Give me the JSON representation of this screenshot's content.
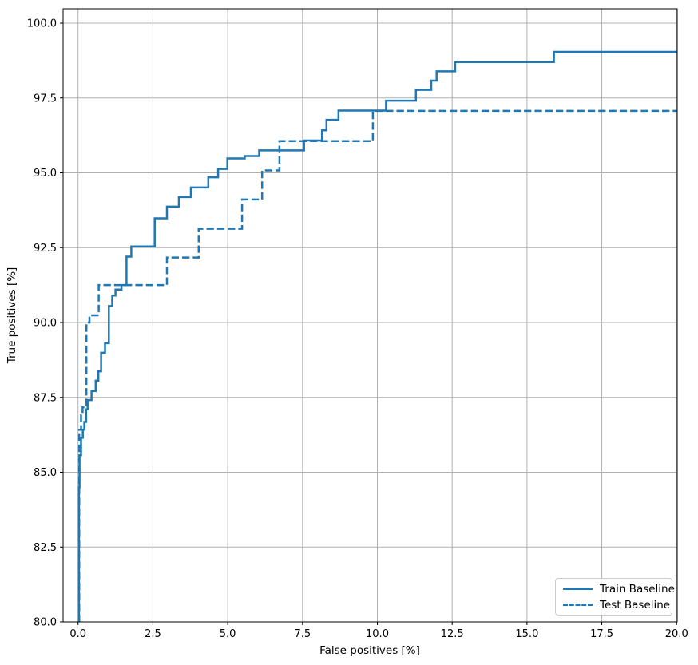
{
  "chart_data": {
    "type": "line",
    "title": "",
    "xlabel": "False positives [%]",
    "ylabel": "True positives [%]",
    "xlim": [
      -0.5,
      20.02
    ],
    "ylim": [
      80,
      100.48
    ],
    "xticks": [
      0.0,
      2.5,
      5.0,
      7.5,
      10.0,
      12.5,
      15.0,
      17.5,
      20.0
    ],
    "yticks": [
      80.0,
      82.5,
      85.0,
      87.5,
      90.0,
      92.5,
      95.0,
      97.5,
      100.0
    ],
    "tick_decimals": 1,
    "grid": true,
    "grid_color": "#b0b0b0",
    "axis_color": "#000000",
    "line_color": "#1f77b4",
    "line_width": 2.5,
    "legend_position": "lower right",
    "series": [
      {
        "name": "Train Baseline",
        "line_style": "solid",
        "color": "#1f77b4",
        "points": [
          [
            0.03,
            80.0
          ],
          [
            0.03,
            84.5
          ],
          [
            0.05,
            84.5
          ],
          [
            0.05,
            85.57
          ],
          [
            0.1,
            85.57
          ],
          [
            0.1,
            86.15
          ],
          [
            0.16,
            86.15
          ],
          [
            0.16,
            86.42
          ],
          [
            0.21,
            86.42
          ],
          [
            0.21,
            86.68
          ],
          [
            0.27,
            86.68
          ],
          [
            0.27,
            87.1
          ],
          [
            0.32,
            87.1
          ],
          [
            0.32,
            87.41
          ],
          [
            0.45,
            87.41
          ],
          [
            0.45,
            87.71
          ],
          [
            0.59,
            87.71
          ],
          [
            0.59,
            88.06
          ],
          [
            0.68,
            88.06
          ],
          [
            0.68,
            88.37
          ],
          [
            0.77,
            88.37
          ],
          [
            0.77,
            88.99
          ],
          [
            0.9,
            88.99
          ],
          [
            0.9,
            89.31
          ],
          [
            1.03,
            89.31
          ],
          [
            1.03,
            90.55
          ],
          [
            1.14,
            90.55
          ],
          [
            1.14,
            90.9
          ],
          [
            1.25,
            90.9
          ],
          [
            1.25,
            91.1
          ],
          [
            1.45,
            91.1
          ],
          [
            1.45,
            91.25
          ],
          [
            1.62,
            91.25
          ],
          [
            1.62,
            92.2
          ],
          [
            1.78,
            92.2
          ],
          [
            1.78,
            92.54
          ],
          [
            2.56,
            92.54
          ],
          [
            2.56,
            93.48
          ],
          [
            2.97,
            93.48
          ],
          [
            2.97,
            93.87
          ],
          [
            3.37,
            93.87
          ],
          [
            3.37,
            94.19
          ],
          [
            3.77,
            94.19
          ],
          [
            3.77,
            94.51
          ],
          [
            4.35,
            94.51
          ],
          [
            4.35,
            94.85
          ],
          [
            4.68,
            94.85
          ],
          [
            4.68,
            95.13
          ],
          [
            4.99,
            95.13
          ],
          [
            4.99,
            95.48
          ],
          [
            5.57,
            95.48
          ],
          [
            5.57,
            95.56
          ],
          [
            6.05,
            95.56
          ],
          [
            6.05,
            95.75
          ],
          [
            7.55,
            95.75
          ],
          [
            7.55,
            96.08
          ],
          [
            8.15,
            96.08
          ],
          [
            8.15,
            96.42
          ],
          [
            8.3,
            96.42
          ],
          [
            8.3,
            96.77
          ],
          [
            8.7,
            96.77
          ],
          [
            8.7,
            97.08
          ],
          [
            10.29,
            97.08
          ],
          [
            10.29,
            97.41
          ],
          [
            11.29,
            97.41
          ],
          [
            11.29,
            97.77
          ],
          [
            11.8,
            97.77
          ],
          [
            11.8,
            98.08
          ],
          [
            11.98,
            98.08
          ],
          [
            11.98,
            98.39
          ],
          [
            12.6,
            98.39
          ],
          [
            12.6,
            98.7
          ],
          [
            15.9,
            98.7
          ],
          [
            15.9,
            99.04
          ],
          [
            20.02,
            99.04
          ]
        ]
      },
      {
        "name": "Test Baseline",
        "line_style": "dashed",
        "color": "#1f77b4",
        "points": [
          [
            0.04,
            80.0
          ],
          [
            0.04,
            86.42
          ],
          [
            0.1,
            86.42
          ],
          [
            0.1,
            86.9
          ],
          [
            0.15,
            86.9
          ],
          [
            0.15,
            87.17
          ],
          [
            0.28,
            87.17
          ],
          [
            0.28,
            90.0
          ],
          [
            0.38,
            90.0
          ],
          [
            0.38,
            90.24
          ],
          [
            0.69,
            90.24
          ],
          [
            0.69,
            91.25
          ],
          [
            2.97,
            91.25
          ],
          [
            2.97,
            92.17
          ],
          [
            4.03,
            92.17
          ],
          [
            4.03,
            93.13
          ],
          [
            5.48,
            93.13
          ],
          [
            5.48,
            94.11
          ],
          [
            6.15,
            94.11
          ],
          [
            6.15,
            95.08
          ],
          [
            6.73,
            95.08
          ],
          [
            6.73,
            96.06
          ],
          [
            9.85,
            96.06
          ],
          [
            9.85,
            97.07
          ],
          [
            20.02,
            97.07
          ]
        ]
      }
    ]
  },
  "legend": {
    "entries": [
      "Train Baseline",
      "Test Baseline"
    ]
  }
}
